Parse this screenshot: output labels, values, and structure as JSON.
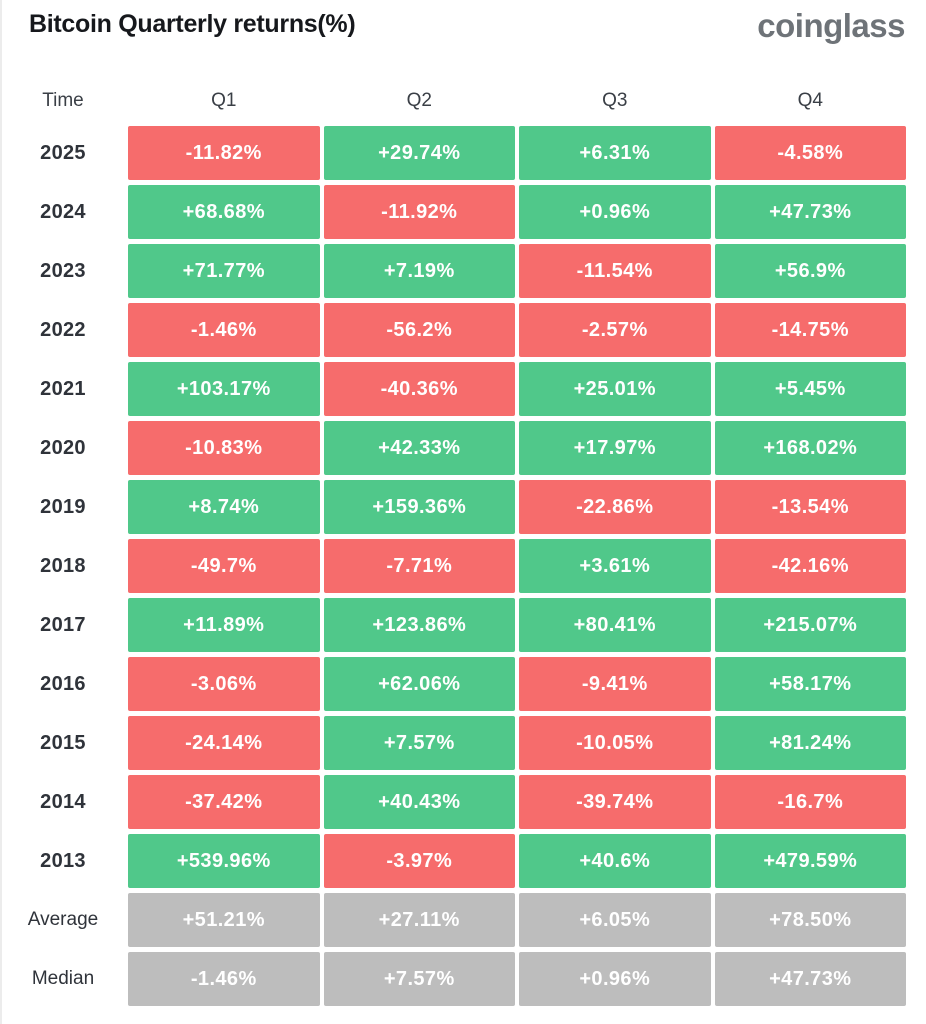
{
  "header": {
    "title": "Bitcoin Quarterly returns(%)",
    "logo_text": "coinglass"
  },
  "colors": {
    "positive": "#50C88A",
    "negative": "#F66C6C",
    "neutral": "#BDBDBD",
    "cell_text": "#FFFFFF"
  },
  "table": {
    "columns": [
      "Time",
      "Q1",
      "Q2",
      "Q3",
      "Q4"
    ],
    "rows": [
      {
        "label": "2025",
        "cells": [
          {
            "value": "-11.82%",
            "type": "negative"
          },
          {
            "value": "+29.74%",
            "type": "positive"
          },
          {
            "value": "+6.31%",
            "type": "positive"
          },
          {
            "value": "-4.58%",
            "type": "negative"
          }
        ]
      },
      {
        "label": "2024",
        "cells": [
          {
            "value": "+68.68%",
            "type": "positive"
          },
          {
            "value": "-11.92%",
            "type": "negative"
          },
          {
            "value": "+0.96%",
            "type": "positive"
          },
          {
            "value": "+47.73%",
            "type": "positive"
          }
        ]
      },
      {
        "label": "2023",
        "cells": [
          {
            "value": "+71.77%",
            "type": "positive"
          },
          {
            "value": "+7.19%",
            "type": "positive"
          },
          {
            "value": "-11.54%",
            "type": "negative"
          },
          {
            "value": "+56.9%",
            "type": "positive"
          }
        ]
      },
      {
        "label": "2022",
        "cells": [
          {
            "value": "-1.46%",
            "type": "negative"
          },
          {
            "value": "-56.2%",
            "type": "negative"
          },
          {
            "value": "-2.57%",
            "type": "negative"
          },
          {
            "value": "-14.75%",
            "type": "negative"
          }
        ]
      },
      {
        "label": "2021",
        "cells": [
          {
            "value": "+103.17%",
            "type": "positive"
          },
          {
            "value": "-40.36%",
            "type": "negative"
          },
          {
            "value": "+25.01%",
            "type": "positive"
          },
          {
            "value": "+5.45%",
            "type": "positive"
          }
        ]
      },
      {
        "label": "2020",
        "cells": [
          {
            "value": "-10.83%",
            "type": "negative"
          },
          {
            "value": "+42.33%",
            "type": "positive"
          },
          {
            "value": "+17.97%",
            "type": "positive"
          },
          {
            "value": "+168.02%",
            "type": "positive"
          }
        ]
      },
      {
        "label": "2019",
        "cells": [
          {
            "value": "+8.74%",
            "type": "positive"
          },
          {
            "value": "+159.36%",
            "type": "positive"
          },
          {
            "value": "-22.86%",
            "type": "negative"
          },
          {
            "value": "-13.54%",
            "type": "negative"
          }
        ]
      },
      {
        "label": "2018",
        "cells": [
          {
            "value": "-49.7%",
            "type": "negative"
          },
          {
            "value": "-7.71%",
            "type": "negative"
          },
          {
            "value": "+3.61%",
            "type": "positive"
          },
          {
            "value": "-42.16%",
            "type": "negative"
          }
        ]
      },
      {
        "label": "2017",
        "cells": [
          {
            "value": "+11.89%",
            "type": "positive"
          },
          {
            "value": "+123.86%",
            "type": "positive"
          },
          {
            "value": "+80.41%",
            "type": "positive"
          },
          {
            "value": "+215.07%",
            "type": "positive"
          }
        ]
      },
      {
        "label": "2016",
        "cells": [
          {
            "value": "-3.06%",
            "type": "negative"
          },
          {
            "value": "+62.06%",
            "type": "positive"
          },
          {
            "value": "-9.41%",
            "type": "negative"
          },
          {
            "value": "+58.17%",
            "type": "positive"
          }
        ]
      },
      {
        "label": "2015",
        "cells": [
          {
            "value": "-24.14%",
            "type": "negative"
          },
          {
            "value": "+7.57%",
            "type": "positive"
          },
          {
            "value": "-10.05%",
            "type": "negative"
          },
          {
            "value": "+81.24%",
            "type": "positive"
          }
        ]
      },
      {
        "label": "2014",
        "cells": [
          {
            "value": "-37.42%",
            "type": "negative"
          },
          {
            "value": "+40.43%",
            "type": "positive"
          },
          {
            "value": "-39.74%",
            "type": "negative"
          },
          {
            "value": "-16.7%",
            "type": "negative"
          }
        ]
      },
      {
        "label": "2013",
        "cells": [
          {
            "value": "+539.96%",
            "type": "positive"
          },
          {
            "value": "-3.97%",
            "type": "negative"
          },
          {
            "value": "+40.6%",
            "type": "positive"
          },
          {
            "value": "+479.59%",
            "type": "positive"
          }
        ]
      },
      {
        "label": "Average",
        "cells": [
          {
            "value": "+51.21%",
            "type": "neutral"
          },
          {
            "value": "+27.11%",
            "type": "neutral"
          },
          {
            "value": "+6.05%",
            "type": "neutral"
          },
          {
            "value": "+78.50%",
            "type": "neutral"
          }
        ]
      },
      {
        "label": "Median",
        "cells": [
          {
            "value": "-1.46%",
            "type": "neutral"
          },
          {
            "value": "+7.57%",
            "type": "neutral"
          },
          {
            "value": "+0.96%",
            "type": "neutral"
          },
          {
            "value": "+47.73%",
            "type": "neutral"
          }
        ]
      }
    ]
  },
  "chart_data": {
    "type": "heatmap",
    "title": "Bitcoin Quarterly returns(%)",
    "columns": [
      "Q1",
      "Q2",
      "Q3",
      "Q4"
    ],
    "rows": [
      "2025",
      "2024",
      "2023",
      "2022",
      "2021",
      "2020",
      "2019",
      "2018",
      "2017",
      "2016",
      "2015",
      "2014",
      "2013",
      "Average",
      "Median"
    ],
    "values": [
      [
        -11.82,
        29.74,
        6.31,
        -4.58
      ],
      [
        68.68,
        -11.92,
        0.96,
        47.73
      ],
      [
        71.77,
        7.19,
        -11.54,
        56.9
      ],
      [
        -1.46,
        -56.2,
        -2.57,
        -14.75
      ],
      [
        103.17,
        -40.36,
        25.01,
        5.45
      ],
      [
        -10.83,
        42.33,
        17.97,
        168.02
      ],
      [
        8.74,
        159.36,
        -22.86,
        -13.54
      ],
      [
        -49.7,
        -7.71,
        3.61,
        -42.16
      ],
      [
        11.89,
        123.86,
        80.41,
        215.07
      ],
      [
        -3.06,
        62.06,
        -9.41,
        58.17
      ],
      [
        -24.14,
        7.57,
        -10.05,
        81.24
      ],
      [
        -37.42,
        40.43,
        -39.74,
        -16.7
      ],
      [
        539.96,
        -3.97,
        40.6,
        479.59
      ],
      [
        51.21,
        27.11,
        6.05,
        78.5
      ],
      [
        -1.46,
        7.57,
        0.96,
        47.73
      ]
    ],
    "legend": "none",
    "color_rule": "green = positive return, red = negative return, gray = Average/Median summary rows"
  }
}
